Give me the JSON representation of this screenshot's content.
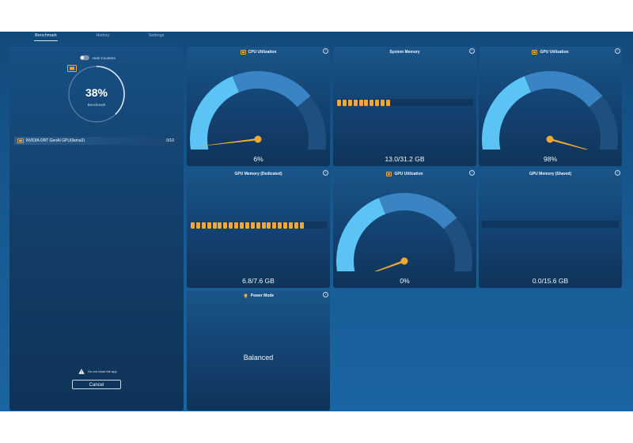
{
  "nav": {
    "tabs": [
      {
        "label": "Benchmark",
        "active": true
      },
      {
        "label": "History",
        "active": false
      },
      {
        "label": "Settings",
        "active": false
      }
    ]
  },
  "left": {
    "toggle_label": "Hide Counters",
    "toggle_on": false,
    "ring": {
      "badge": "ORT",
      "percent_text": "38%",
      "percent": 38,
      "label": "Benchmark"
    },
    "device": {
      "name": "NVIDIA ORT GenAI GPU(llama3)",
      "count": "0/10"
    },
    "warning": "Do not close the app",
    "cancel_label": "Cancel"
  },
  "cards": {
    "cpu": {
      "title": "CPU Utilization",
      "value": "6%",
      "percent": 6
    },
    "sysmem": {
      "title": "System Memory",
      "value": "13.0/31.2 GB",
      "fraction": 0.417
    },
    "gpu1": {
      "title": "GPU Utilization",
      "value": "98%",
      "percent": 98
    },
    "gpumem_ded": {
      "title": "GPU Memory (Dedicated)",
      "value": "6.8/7.6 GB",
      "fraction": 0.895
    },
    "gpu2": {
      "title": "GPU Utilization",
      "value": "0%",
      "percent": 0
    },
    "gpumem_shr": {
      "title": "GPU Memory (Shared)",
      "value": "0.0/15.6 GB",
      "fraction": 0.0
    },
    "power": {
      "title": "Power Mode",
      "value": "Balanced"
    }
  },
  "colors": {
    "accent_orange": "#f2a832",
    "gauge_light": "#5cc3f5",
    "gauge_mid": "#3a84c4",
    "gauge_dark": "#1f4f7e"
  }
}
